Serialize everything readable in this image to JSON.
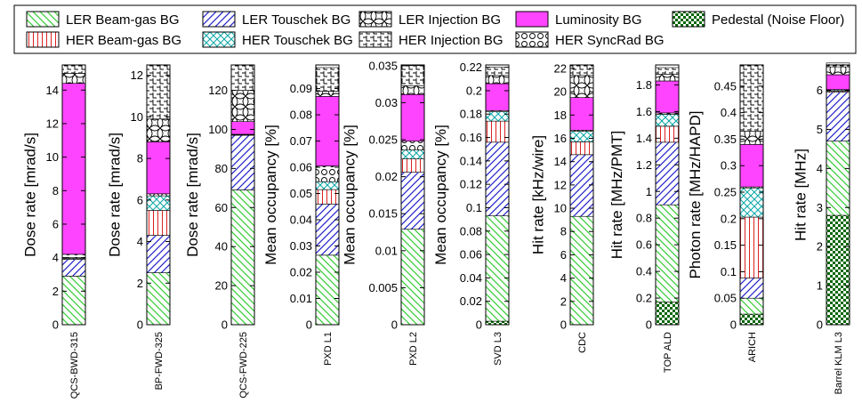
{
  "chart_data": {
    "type": "bar",
    "stacked": true,
    "legend_position": "top",
    "legend": [
      {
        "key": "ler_bg",
        "name": "LER Beam-gas BG",
        "color": "#33cc33",
        "pattern": "diag-down"
      },
      {
        "key": "ler_tou",
        "name": "LER Touschek BG",
        "color": "#2222cc",
        "pattern": "diag-up"
      },
      {
        "key": "ler_inj",
        "name": "LER Injection BG",
        "color": "#000000",
        "pattern": "circles"
      },
      {
        "key": "lumi",
        "name": "Luminosity BG",
        "color": "#ff44ff",
        "pattern": "solid"
      },
      {
        "key": "ped",
        "name": "Pedestal (Noise Floor)",
        "color": "#006600",
        "pattern": "checker"
      },
      {
        "key": "her_bg",
        "name": "HER Beam-gas BG",
        "color": "#dd2222",
        "pattern": "vertical"
      },
      {
        "key": "her_tou",
        "name": "HER Touschek BG",
        "color": "#11aaaa",
        "pattern": "crosshatch"
      },
      {
        "key": "her_inj",
        "name": "HER Injection BG",
        "color": "#000000",
        "pattern": "steps"
      },
      {
        "key": "her_sr",
        "name": "HER SyncRad BG",
        "color": "#000000",
        "pattern": "rings"
      }
    ],
    "stack_order": [
      "ped",
      "ler_bg",
      "ler_tou",
      "her_bg",
      "her_tou",
      "her_sr",
      "lumi",
      "ler_inj",
      "her_inj"
    ],
    "panels": [
      {
        "label": "QCS-BWD-315",
        "ylabel": "Dose rate [mrad/s]",
        "ylim": [
          0,
          15.5
        ],
        "ticks": [
          0,
          2,
          4,
          6,
          8,
          10,
          12,
          14
        ],
        "tick_labels": [
          "0",
          "2",
          "4",
          "6",
          "8",
          "10",
          "12",
          "14"
        ],
        "values": {
          "ped": 0,
          "ler_bg": 2.9,
          "ler_tou": 1.0,
          "her_bg": 0.05,
          "her_tou": 0.05,
          "her_sr": 0.2,
          "lumi": 10.2,
          "ler_inj": 0.6,
          "her_inj": 0.5
        }
      },
      {
        "label": "BP-FWD-325",
        "ylabel": "Dose rate [mrad/s]",
        "ylim": [
          0,
          12.5
        ],
        "ticks": [
          0,
          2,
          4,
          6,
          8,
          10,
          12
        ],
        "tick_labels": [
          "0",
          "2",
          "4",
          "6",
          "8",
          "10",
          "12"
        ],
        "values": {
          "ped": 0,
          "ler_bg": 2.5,
          "ler_tou": 1.8,
          "her_bg": 1.2,
          "her_tou": 0.7,
          "her_sr": 0.1,
          "lumi": 2.5,
          "ler_inj": 1.1,
          "her_inj": 2.6
        }
      },
      {
        "label": "QCS-FWD-225",
        "ylabel": "Dose rate [mrad/s]",
        "ylim": [
          0,
          133
        ],
        "ticks": [
          0,
          20,
          40,
          60,
          80,
          100,
          120
        ],
        "tick_labels": [
          "0",
          "20",
          "40",
          "60",
          "80",
          "100",
          "120"
        ],
        "values": {
          "ped": 0,
          "ler_bg": 69,
          "ler_tou": 28,
          "her_bg": 0.2,
          "her_tou": 0.2,
          "her_sr": 0.1,
          "lumi": 6.5,
          "ler_inj": 16,
          "her_inj": 13
        }
      },
      {
        "label": "PXD L1",
        "ylabel": "Mean occupancy [%]",
        "ylim": [
          0,
          0.099
        ],
        "ticks": [
          0,
          0.01,
          0.02,
          0.03,
          0.04,
          0.05,
          0.06,
          0.07,
          0.08,
          0.09
        ],
        "tick_labels": [
          "0",
          "0.01",
          "0.02",
          "0.03",
          "0.04",
          "0.05",
          "0.06",
          "0.07",
          "0.08",
          "0.09"
        ],
        "values": {
          "ped": 0,
          "ler_bg": 0.0265,
          "ler_tou": 0.0195,
          "her_bg": 0.0055,
          "her_tou": 0.003,
          "her_sr": 0.006,
          "lumi": 0.0265,
          "ler_inj": 0.002,
          "her_inj": 0.009
        }
      },
      {
        "label": "PXD L2",
        "ylabel": "Mean occupancy [%]",
        "ylim": [
          0,
          0.0351
        ],
        "ticks": [
          0,
          0.005,
          0.01,
          0.015,
          0.02,
          0.025,
          0.03,
          0.035
        ],
        "tick_labels": [
          "0",
          "0.005",
          "0.01",
          "0.015",
          "0.02",
          "0.025",
          "0.03",
          "0.035"
        ],
        "values": {
          "ped": 0,
          "ler_bg": 0.0129,
          "ler_tou": 0.0077,
          "her_bg": 0.0018,
          "her_tou": 0.0012,
          "her_sr": 0.0012,
          "lumi": 0.0063,
          "ler_inj": 0.0012,
          "her_inj": 0.0027
        }
      },
      {
        "label": "SVD L3",
        "ylabel": "Mean occupancy [%]",
        "ylim": [
          0,
          0.222
        ],
        "ticks": [
          0,
          0.02,
          0.04,
          0.06,
          0.08,
          0.1,
          0.12,
          0.14,
          0.16,
          0.18,
          0.2,
          0.22
        ],
        "tick_labels": [
          "0",
          "0.02",
          "0.04",
          "0.06",
          "0.08",
          "0.1",
          "0.12",
          "0.14",
          "0.16",
          "0.18",
          "0.2",
          "0.22"
        ],
        "values": {
          "ped": 0.003,
          "ler_bg": 0.09,
          "ler_tou": 0.063,
          "her_bg": 0.018,
          "her_tou": 0.008,
          "her_sr": 0.001,
          "lumi": 0.023,
          "ler_inj": 0.007,
          "her_inj": 0.007
        }
      },
      {
        "label": "CDC",
        "ylabel": "Hit rate [kHz/wire]",
        "ylim": [
          0,
          22.3
        ],
        "ticks": [
          0,
          2,
          4,
          6,
          8,
          10,
          12,
          14,
          16,
          18,
          20,
          22
        ],
        "tick_labels": [
          "0",
          "2",
          "4",
          "6",
          "8",
          "10",
          "12",
          "14",
          "16",
          "18",
          "20",
          "22"
        ],
        "values": {
          "ped": 0,
          "ler_bg": 9.3,
          "ler_tou": 5.3,
          "her_bg": 1.1,
          "her_tou": 0.9,
          "her_sr": 0.1,
          "lumi": 2.8,
          "ler_inj": 1.9,
          "her_inj": 0.9
        }
      },
      {
        "label": "TOP ALD",
        "ylabel": "Hit rate [MHz/PMT]",
        "ylim": [
          0,
          1.95
        ],
        "ticks": [
          0,
          0.2,
          0.4,
          0.6,
          0.8,
          1,
          1.2,
          1.4,
          1.6,
          1.8
        ],
        "tick_labels": [
          "0",
          "0.2",
          "0.4",
          "0.6",
          "0.8",
          "1",
          "1.2",
          "1.4",
          "1.6",
          "1.8"
        ],
        "values": {
          "ped": 0.17,
          "ler_bg": 0.73,
          "ler_tou": 0.47,
          "her_bg": 0.12,
          "her_tou": 0.09,
          "her_sr": 0.01,
          "lumi": 0.24,
          "ler_inj": 0.05,
          "her_inj": 0.05
        }
      },
      {
        "label": "ARICH",
        "ylabel": "Photon rate [MHz/HAPD]",
        "ylim": [
          0,
          0.49
        ],
        "ticks": [
          0,
          0.05,
          0.1,
          0.15,
          0.2,
          0.25,
          0.3,
          0.35,
          0.4,
          0.45
        ],
        "tick_labels": [
          "0",
          "0.05",
          "0.1",
          "0.15",
          "0.2",
          "0.25",
          "0.3",
          "0.35",
          "0.4",
          "0.45"
        ],
        "values": {
          "ped": 0.02,
          "ler_bg": 0.03,
          "ler_tou": 0.038,
          "her_bg": 0.115,
          "her_tou": 0.055,
          "her_sr": 0.002,
          "lumi": 0.08,
          "ler_inj": 0.025,
          "her_inj": 0.125
        }
      },
      {
        "label": "Barrel KLM L3",
        "ylabel": "Hit rate [MHz]",
        "ylim": [
          0,
          6.65
        ],
        "ticks": [
          0,
          1,
          2,
          3,
          4,
          5,
          6
        ],
        "tick_labels": [
          "0",
          "1",
          "2",
          "3",
          "4",
          "5",
          "6"
        ],
        "values": {
          "ped": 2.8,
          "ler_bg": 1.9,
          "ler_tou": 1.25,
          "her_bg": 0.03,
          "her_tou": 0.03,
          "her_sr": 0.01,
          "lumi": 0.38,
          "ler_inj": 0.2,
          "her_inj": 0.1
        }
      }
    ]
  }
}
